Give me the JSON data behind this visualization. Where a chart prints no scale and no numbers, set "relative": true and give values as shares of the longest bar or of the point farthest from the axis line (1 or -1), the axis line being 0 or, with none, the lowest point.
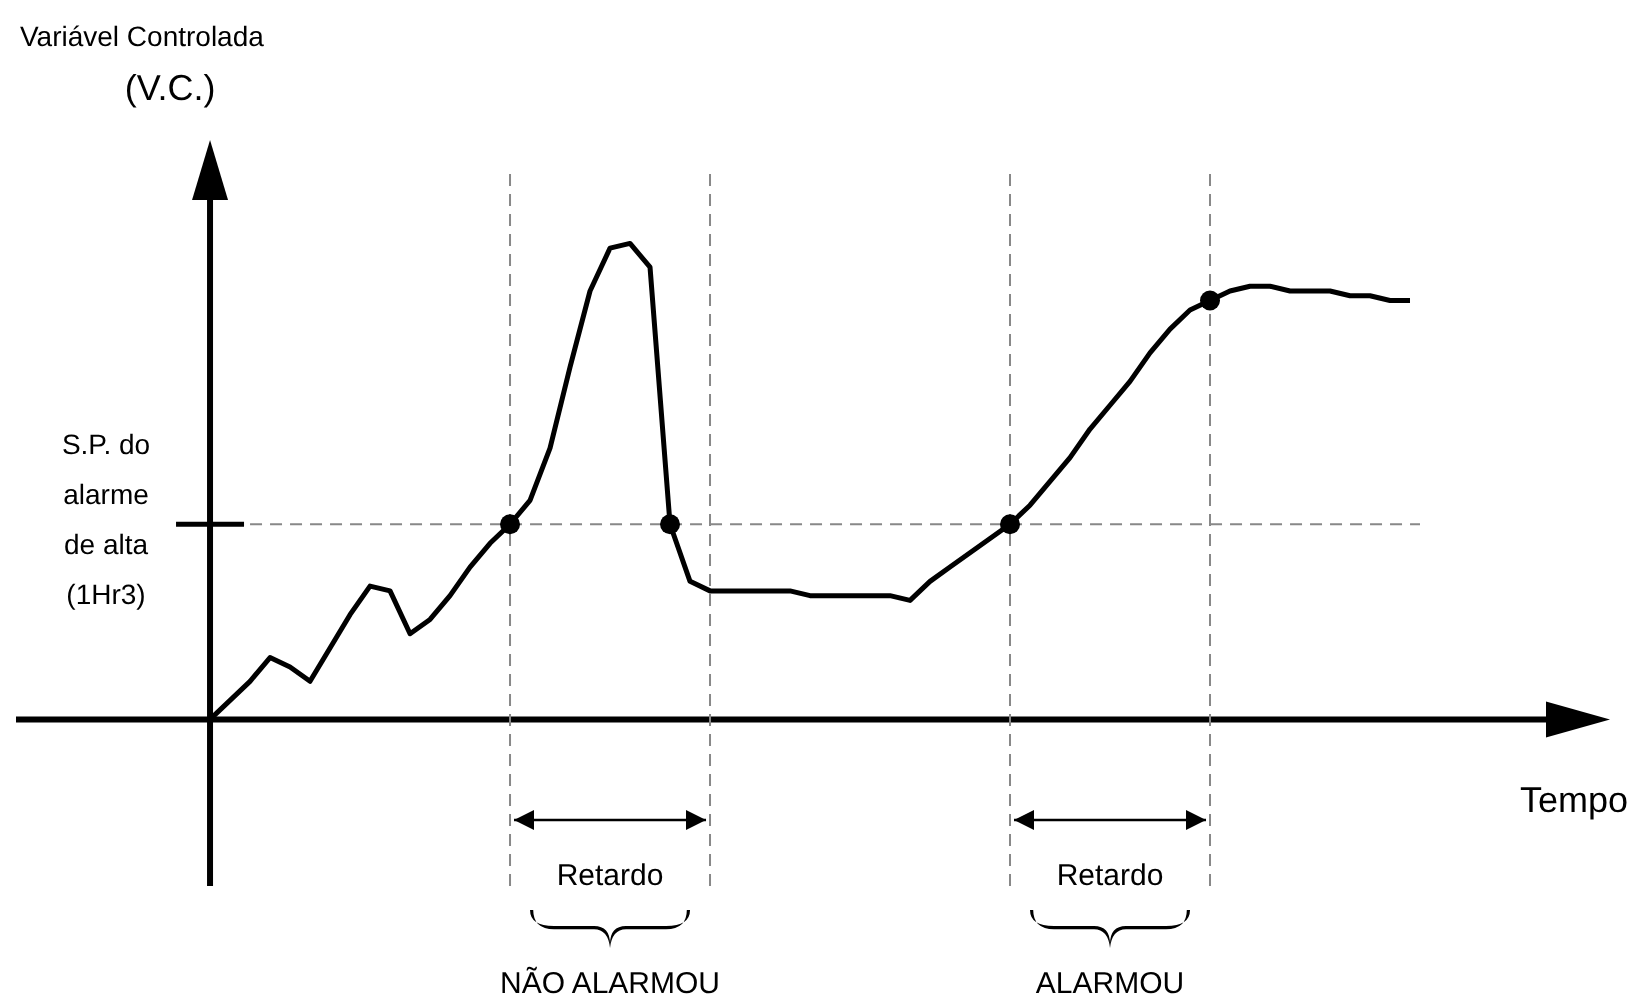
{
  "chart_data": {
    "type": "line",
    "relative": true,
    "grid": "x",
    "ylabel": "Variável Controlada (V.C.)",
    "xlabel": "Tempo",
    "categories": [
      null,
      null,
      null,
      null,
      null,
      null,
      null,
      null,
      null,
      null,
      null,
      null,
      null,
      null,
      null,
      null,
      null,
      null,
      null,
      null,
      null,
      null,
      null,
      null,
      null,
      null,
      null,
      null,
      null,
      null,
      null,
      null,
      null,
      null,
      null,
      null,
      null,
      null,
      null,
      null,
      null,
      null,
      null,
      null,
      null,
      null,
      null,
      null,
      null,
      null,
      null,
      null,
      null,
      null,
      null,
      null,
      null,
      null,
      null,
      null,
      null
    ],
    "series": [
      {
        "color": "#000000",
        "values": [
          0,
          0.04,
          0.08,
          0.13,
          0.11,
          0.08,
          0.15,
          0.22,
          0.28,
          0.27,
          0.18,
          0.21,
          0.26,
          0.32,
          0.37,
          0.41,
          0.46,
          0.57,
          0.74,
          0.9,
          0.99,
          1,
          0.95,
          0.41,
          0.29,
          0.27,
          0.27,
          0.27,
          0.27,
          0.27,
          0.26,
          0.26,
          0.26,
          0.26,
          0.26,
          0.25,
          0.29,
          0.32,
          0.35,
          0.38,
          0.41,
          0.45,
          0.5,
          0.55,
          0.61,
          0.66,
          0.71,
          0.77,
          0.82,
          0.86,
          0.88,
          0.9,
          0.91,
          0.91,
          0.9,
          0.9,
          0.9,
          0.89,
          0.89,
          0.88,
          0.88
        ]
      }
    ],
    "ref_lines": [
      {
        "axis": "y",
        "value": 0.41,
        "label": "S.P. do alarme de alta (1Hr3)",
        "color": "#888888",
        "line_style": "dashed"
      }
    ],
    "annotations": [
      "Retardo",
      "Retardo",
      "NÃO ALARMOU",
      "ALARMOU"
    ]
  }
}
